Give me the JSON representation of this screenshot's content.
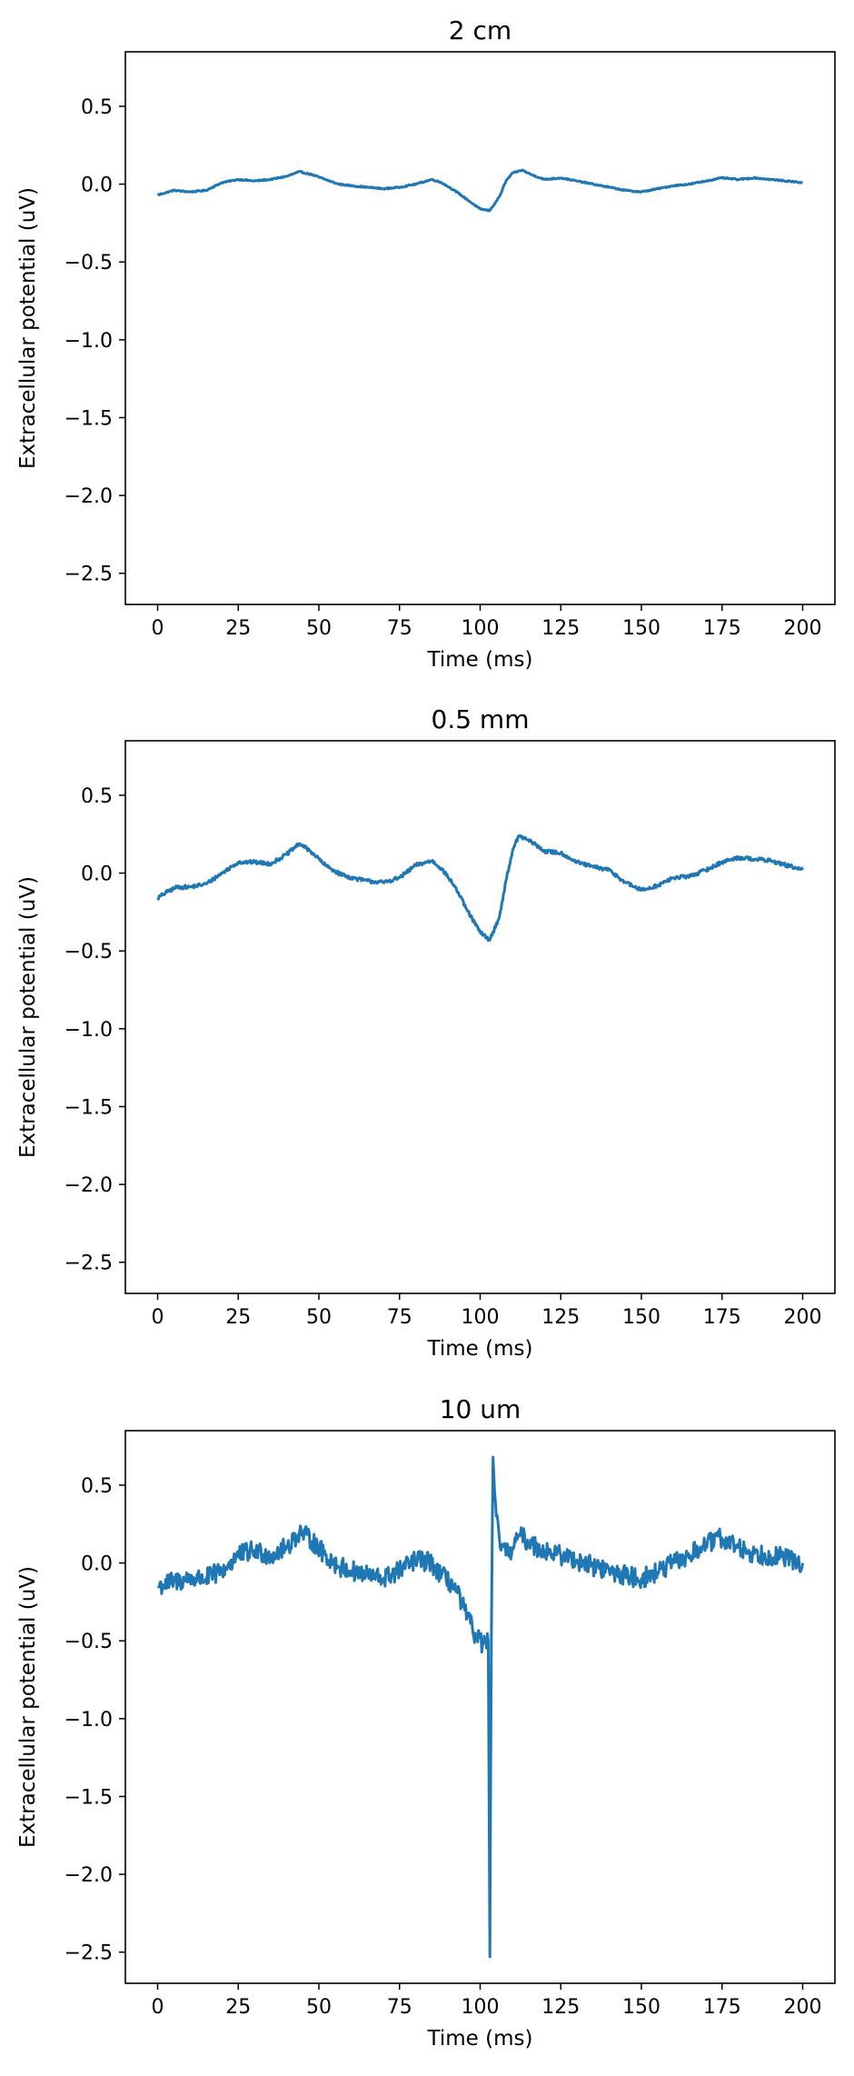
{
  "chart_data": [
    {
      "type": "line",
      "title": "2 cm",
      "xlabel": "Time (ms)",
      "ylabel": "Extracellular potential (uV)",
      "xlim": [
        -10,
        210
      ],
      "ylim": [
        -2.7,
        0.85
      ],
      "xticks": [
        0,
        25,
        50,
        75,
        100,
        125,
        150,
        175,
        200
      ],
      "xtick_labels": [
        "0",
        "25",
        "50",
        "75",
        "100",
        "125",
        "150",
        "175",
        "200"
      ],
      "yticks": [
        0.5,
        0.0,
        -0.5,
        -1.0,
        -1.5,
        -2.0,
        -2.5
      ],
      "ytick_labels": [
        "0.5",
        "0.0",
        "−0.5",
        "−1.0",
        "−1.5",
        "−2.0",
        "−2.5"
      ],
      "color": "#1f77b4",
      "noise": 0.004,
      "series": [
        {
          "name": "2 cm",
          "x": [
            0,
            5,
            10,
            15,
            20,
            25,
            30,
            35,
            40,
            44,
            48,
            52,
            56,
            60,
            65,
            70,
            75,
            80,
            85,
            88,
            92,
            96,
            100,
            103,
            106,
            108,
            110,
            113,
            116,
            120,
            125,
            130,
            135,
            140,
            145,
            150,
            155,
            160,
            165,
            170,
            175,
            180,
            185,
            190,
            195,
            200
          ],
          "y": [
            -0.07,
            -0.04,
            -0.05,
            -0.04,
            0.01,
            0.03,
            0.02,
            0.03,
            0.05,
            0.08,
            0.06,
            0.03,
            0.0,
            -0.01,
            -0.02,
            -0.03,
            -0.02,
            0.0,
            0.03,
            0.01,
            -0.04,
            -0.1,
            -0.16,
            -0.17,
            -0.08,
            0.02,
            0.07,
            0.09,
            0.06,
            0.03,
            0.04,
            0.02,
            0.0,
            -0.02,
            -0.04,
            -0.05,
            -0.03,
            -0.01,
            0.0,
            0.02,
            0.04,
            0.03,
            0.04,
            0.03,
            0.02,
            0.01
          ]
        }
      ]
    },
    {
      "type": "line",
      "title": "0.5 mm",
      "xlabel": "Time (ms)",
      "ylabel": "Extracellular potential (uV)",
      "xlim": [
        -10,
        210
      ],
      "ylim": [
        -2.7,
        0.85
      ],
      "xticks": [
        0,
        25,
        50,
        75,
        100,
        125,
        150,
        175,
        200
      ],
      "xtick_labels": [
        "0",
        "25",
        "50",
        "75",
        "100",
        "125",
        "150",
        "175",
        "200"
      ],
      "yticks": [
        0.5,
        0.0,
        -0.5,
        -1.0,
        -1.5,
        -2.0,
        -2.5
      ],
      "ytick_labels": [
        "0.5",
        "0.0",
        "−0.5",
        "−1.0",
        "−1.5",
        "−2.0",
        "−2.5"
      ],
      "color": "#1f77b4",
      "noise": 0.012,
      "series": [
        {
          "name": "0.5 mm",
          "x": [
            0,
            3,
            6,
            10,
            15,
            20,
            25,
            30,
            35,
            40,
            44,
            48,
            52,
            56,
            60,
            65,
            70,
            75,
            80,
            85,
            88,
            92,
            96,
            100,
            103,
            106,
            108,
            110,
            112,
            116,
            120,
            125,
            130,
            135,
            140,
            145,
            150,
            155,
            160,
            165,
            170,
            175,
            180,
            185,
            190,
            195,
            200
          ],
          "y": [
            -0.16,
            -0.12,
            -0.09,
            -0.09,
            -0.07,
            0.0,
            0.07,
            0.07,
            0.06,
            0.12,
            0.19,
            0.13,
            0.05,
            0.0,
            -0.03,
            -0.05,
            -0.06,
            -0.03,
            0.05,
            0.08,
            0.03,
            -0.08,
            -0.24,
            -0.38,
            -0.43,
            -0.28,
            -0.05,
            0.14,
            0.24,
            0.2,
            0.14,
            0.13,
            0.07,
            0.04,
            0.02,
            -0.06,
            -0.11,
            -0.08,
            -0.03,
            -0.02,
            0.02,
            0.07,
            0.1,
            0.09,
            0.08,
            0.05,
            0.02
          ]
        }
      ]
    },
    {
      "type": "line",
      "title": "10 um",
      "xlabel": "Time (ms)",
      "ylabel": "Extracellular potential (uV)",
      "xlim": [
        -10,
        210
      ],
      "ylim": [
        -2.7,
        0.85
      ],
      "xticks": [
        0,
        25,
        50,
        75,
        100,
        125,
        150,
        175,
        200
      ],
      "xtick_labels": [
        "0",
        "25",
        "50",
        "75",
        "100",
        "125",
        "150",
        "175",
        "200"
      ],
      "yticks": [
        0.5,
        0.0,
        -0.5,
        -1.0,
        -1.5,
        -2.0,
        -2.5
      ],
      "ytick_labels": [
        "0.5",
        "0.0",
        "−0.5",
        "−1.0",
        "−1.5",
        "−2.0",
        "−2.5"
      ],
      "color": "#1f77b4",
      "noise": 0.065,
      "series": [
        {
          "name": "10 um",
          "x": [
            0,
            5,
            10,
            15,
            20,
            25,
            30,
            35,
            40,
            44,
            48,
            52,
            56,
            60,
            65,
            70,
            75,
            80,
            85,
            88,
            92,
            96,
            99,
            101,
            102.5,
            103,
            103.5,
            104,
            104.5,
            105,
            106,
            108,
            110,
            112,
            116,
            120,
            125,
            130,
            135,
            140,
            145,
            150,
            155,
            160,
            165,
            170,
            175,
            180,
            185,
            190,
            195,
            200
          ],
          "y": [
            -0.15,
            -0.12,
            -0.1,
            -0.1,
            -0.05,
            0.05,
            0.08,
            0.05,
            0.1,
            0.2,
            0.14,
            0.05,
            -0.02,
            -0.05,
            -0.08,
            -0.1,
            -0.05,
            0.02,
            0.0,
            -0.08,
            -0.15,
            -0.35,
            -0.48,
            -0.52,
            -0.5,
            -2.53,
            -0.45,
            0.68,
            0.45,
            0.3,
            0.15,
            0.05,
            0.1,
            0.18,
            0.12,
            0.08,
            0.05,
            0.02,
            -0.02,
            -0.05,
            -0.08,
            -0.1,
            -0.06,
            0.0,
            0.05,
            0.12,
            0.16,
            0.1,
            0.06,
            0.05,
            0.03,
            0.0
          ]
        }
      ]
    }
  ]
}
